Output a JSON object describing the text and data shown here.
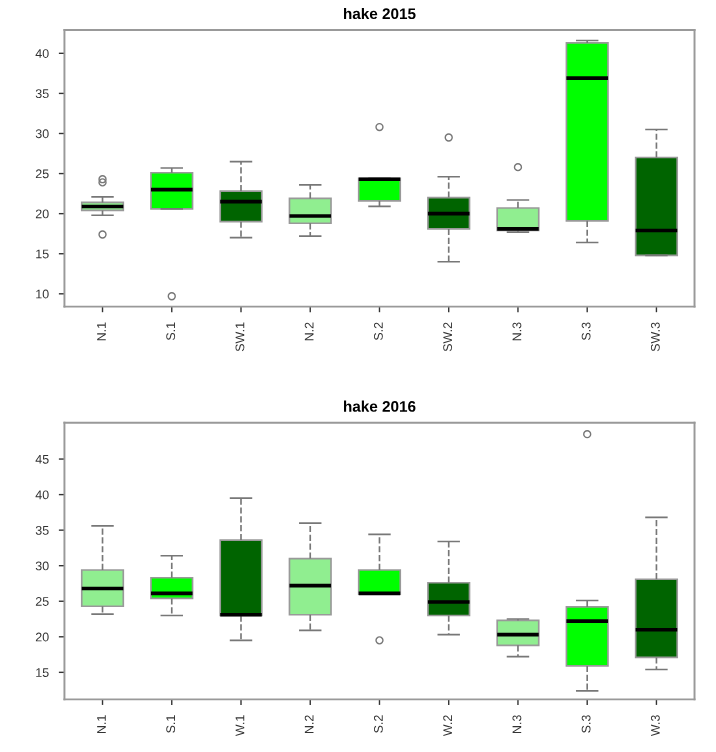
{
  "chart_data": [
    {
      "type": "box",
      "title": "hake 2015",
      "categories": [
        "N.1",
        "S.1",
        "SW.1",
        "N.2",
        "S.2",
        "SW.2",
        "N.3",
        "S.3",
        "SW.3"
      ],
      "colors": [
        "#90ee90",
        "#00ff00",
        "#006400",
        "#90ee90",
        "#00ff00",
        "#006400",
        "#90ee90",
        "#00ff00",
        "#006400"
      ],
      "boxes": [
        {
          "low": 19.8,
          "q1": 20.4,
          "median": 20.9,
          "q3": 21.4,
          "high": 22.1,
          "outliers": [
            24.3,
            23.9,
            17.4
          ]
        },
        {
          "low": 20.6,
          "q1": 20.6,
          "median": 23.0,
          "q3": 25.1,
          "high": 25.7,
          "outliers": [
            9.7
          ]
        },
        {
          "low": 17.0,
          "q1": 19.0,
          "median": 21.5,
          "q3": 22.8,
          "high": 26.5
        },
        {
          "low": 17.2,
          "q1": 18.8,
          "median": 19.7,
          "q3": 21.9,
          "high": 23.6
        },
        {
          "low": 20.9,
          "q1": 21.6,
          "median": 24.3,
          "q3": 24.4,
          "high": 24.4,
          "outliers": [
            30.8
          ]
        },
        {
          "low": 14.0,
          "q1": 18.1,
          "median": 20.0,
          "q3": 22.0,
          "high": 24.6,
          "outliers": [
            29.5
          ]
        },
        {
          "low": 17.7,
          "q1": 17.9,
          "median": 18.1,
          "q3": 20.7,
          "high": 21.7,
          "outliers": [
            25.8
          ]
        },
        {
          "low": 16.4,
          "q1": 19.1,
          "median": 36.9,
          "q3": 41.3,
          "high": 41.6
        },
        {
          "low": 14.8,
          "q1": 14.8,
          "median": 17.9,
          "q3": 27.0,
          "high": 30.5
        }
      ],
      "ylim": [
        8.4,
        42.9
      ],
      "yticks": [
        10,
        15,
        20,
        25,
        30,
        35,
        40
      ],
      "line_style": "dashed",
      "grid": false,
      "legend": false
    },
    {
      "type": "box",
      "title": "hake 2016",
      "categories": [
        "N.1",
        "S.1",
        "W.1",
        "N.2",
        "S.2",
        "W.2",
        "N.3",
        "S.3",
        "W.3"
      ],
      "colors": [
        "#90ee90",
        "#00ff00",
        "#006400",
        "#90ee90",
        "#00ff00",
        "#006400",
        "#90ee90",
        "#00ff00",
        "#006400"
      ],
      "boxes": [
        {
          "low": 23.2,
          "q1": 24.3,
          "median": 26.8,
          "q3": 29.4,
          "high": 35.6
        },
        {
          "low": 23.0,
          "q1": 25.4,
          "median": 26.1,
          "q3": 28.3,
          "high": 31.4
        },
        {
          "low": 19.5,
          "q1": 23.0,
          "median": 23.1,
          "q3": 33.6,
          "high": 39.5
        },
        {
          "low": 20.9,
          "q1": 23.1,
          "median": 27.2,
          "q3": 31.0,
          "high": 36.0
        },
        {
          "low": 26.0,
          "q1": 26.0,
          "median": 26.1,
          "q3": 29.4,
          "high": 34.4,
          "outliers": [
            19.5
          ]
        },
        {
          "low": 20.3,
          "q1": 23.0,
          "median": 24.9,
          "q3": 27.6,
          "high": 33.4
        },
        {
          "low": 17.2,
          "q1": 18.8,
          "median": 20.3,
          "q3": 22.3,
          "high": 22.5
        },
        {
          "low": 12.4,
          "q1": 15.9,
          "median": 22.2,
          "q3": 24.2,
          "high": 25.1,
          "outliers": [
            48.5
          ]
        },
        {
          "low": 15.4,
          "q1": 17.1,
          "median": 21.0,
          "q3": 28.1,
          "high": 36.8
        }
      ],
      "ylim": [
        11.2,
        50.1
      ],
      "yticks": [
        15,
        20,
        25,
        30,
        35,
        40,
        45
      ],
      "line_style": "dashed",
      "grid": false,
      "legend": false
    }
  ]
}
